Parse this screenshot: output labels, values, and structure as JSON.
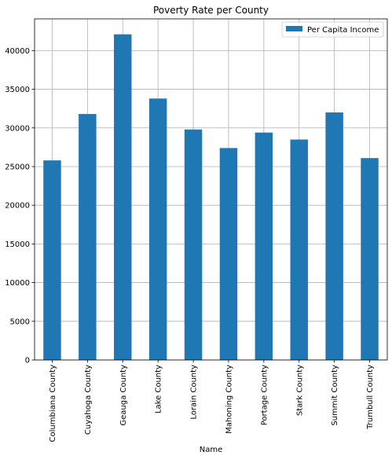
{
  "chart_data": {
    "type": "bar",
    "title": "Poverty Rate per County",
    "xlabel": "Name",
    "ylabel": "",
    "categories": [
      "Columbiana County",
      "Cuyahoga County",
      "Geauga County",
      "Lake County",
      "Lorain County",
      "Mahoning County",
      "Portage County",
      "Stark County",
      "Summit County",
      "Trumbull County"
    ],
    "series": [
      {
        "name": "Per Capita Income",
        "color": "#1f77b4",
        "values": [
          25800,
          31800,
          42100,
          33800,
          29800,
          27400,
          29400,
          28500,
          32000,
          26100
        ]
      }
    ],
    "ylim": [
      0,
      44100
    ],
    "yticks": [
      0,
      5000,
      10000,
      15000,
      20000,
      25000,
      30000,
      35000,
      40000
    ],
    "grid": true,
    "legend_position": "top-right"
  }
}
